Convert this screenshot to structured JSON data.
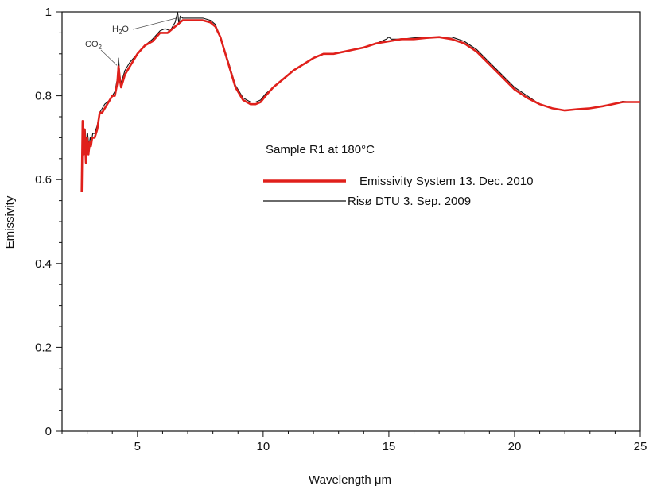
{
  "chart_data": {
    "type": "line",
    "title": "",
    "xlabel": "Wavelength  μm",
    "ylabel": "Emissivity",
    "xlim": [
      2,
      25
    ],
    "ylim": [
      0,
      1
    ],
    "x_ticks": [
      5,
      10,
      15,
      20,
      25
    ],
    "x_tick_labels": [
      "5",
      "10",
      "15",
      "20",
      "25"
    ],
    "x_minor_step": 1,
    "y_ticks": [
      0,
      0.2,
      0.4,
      0.6,
      0.8,
      1
    ],
    "y_tick_labels": [
      "0",
      "0.2",
      "0.4",
      "0.6",
      "0.8",
      "1"
    ],
    "y_minor_step": 0.05,
    "grid": false,
    "legend_position": "upper-middle-right",
    "legend_title": "Sample R1 at 180°C",
    "annotations": [
      {
        "text": "CO",
        "subscript": "2",
        "x": 4.25,
        "y": 0.88
      },
      {
        "text": "H",
        "subscript": "2",
        "suffix": "O",
        "x": 6.6,
        "y": 1.0
      }
    ],
    "series": [
      {
        "name": "Emissivity System 13. Dec. 2010",
        "color": "#e0201b",
        "x": [
          2.78,
          2.82,
          2.86,
          2.9,
          2.95,
          3.0,
          3.05,
          3.1,
          3.15,
          3.2,
          3.3,
          3.4,
          3.5,
          3.6,
          3.7,
          3.8,
          3.9,
          4.0,
          4.1,
          4.2,
          4.25,
          4.3,
          4.35,
          4.4,
          4.5,
          4.7,
          5.0,
          5.3,
          5.6,
          5.9,
          6.2,
          6.4,
          6.6,
          6.8,
          7.0,
          7.3,
          7.6,
          7.9,
          8.1,
          8.3,
          8.6,
          8.9,
          9.2,
          9.5,
          9.7,
          9.9,
          10.1,
          10.4,
          10.8,
          11.2,
          11.6,
          12.0,
          12.4,
          12.8,
          13.2,
          13.6,
          14.0,
          14.5,
          15.0,
          15.5,
          16.0,
          16.5,
          17.0,
          17.5,
          18.0,
          18.5,
          19.0,
          19.5,
          20.0,
          20.5,
          21.0,
          21.5,
          22.0,
          22.5,
          23.0,
          23.5,
          23.9,
          24.3,
          24.6,
          25.0
        ],
        "values": [
          0.57,
          0.74,
          0.66,
          0.72,
          0.64,
          0.7,
          0.66,
          0.69,
          0.68,
          0.7,
          0.7,
          0.72,
          0.76,
          0.76,
          0.77,
          0.78,
          0.79,
          0.8,
          0.8,
          0.83,
          0.87,
          0.84,
          0.82,
          0.83,
          0.85,
          0.87,
          0.9,
          0.92,
          0.93,
          0.95,
          0.95,
          0.96,
          0.97,
          0.98,
          0.98,
          0.98,
          0.98,
          0.975,
          0.965,
          0.94,
          0.88,
          0.82,
          0.79,
          0.78,
          0.78,
          0.785,
          0.8,
          0.82,
          0.84,
          0.86,
          0.875,
          0.89,
          0.9,
          0.9,
          0.905,
          0.91,
          0.915,
          0.925,
          0.93,
          0.935,
          0.935,
          0.938,
          0.94,
          0.935,
          0.925,
          0.905,
          0.875,
          0.845,
          0.815,
          0.795,
          0.78,
          0.77,
          0.765,
          0.768,
          0.77,
          0.775,
          0.78,
          0.785,
          0.785,
          0.785
        ]
      },
      {
        "name": "Risø DTU 3. Sep. 2009",
        "color": "#111111",
        "x": [
          2.8,
          2.84,
          2.88,
          2.92,
          2.97,
          3.02,
          3.07,
          3.12,
          3.17,
          3.22,
          3.3,
          3.4,
          3.5,
          3.6,
          3.7,
          3.8,
          3.9,
          4.0,
          4.1,
          4.2,
          4.25,
          4.3,
          4.35,
          4.4,
          4.5,
          4.7,
          5.0,
          5.3,
          5.6,
          5.9,
          6.1,
          6.3,
          6.5,
          6.6,
          6.65,
          6.7,
          6.8,
          7.0,
          7.3,
          7.6,
          7.9,
          8.1,
          8.3,
          8.6,
          8.9,
          9.2,
          9.5,
          9.7,
          9.9,
          10.1,
          10.4,
          10.8,
          11.2,
          11.6,
          12.0,
          12.4,
          12.8,
          13.2,
          13.6,
          14.0,
          14.5,
          14.9,
          15.0,
          15.1,
          15.5,
          16.0,
          16.5,
          17.0,
          17.5,
          18.0,
          18.5,
          19.0,
          19.5,
          20.0,
          20.5,
          21.0,
          21.5,
          22.0,
          22.5,
          23.0,
          23.5,
          23.9,
          24.3,
          24.6,
          25.0
        ],
        "values": [
          0.66,
          0.73,
          0.67,
          0.72,
          0.68,
          0.71,
          0.68,
          0.7,
          0.69,
          0.71,
          0.71,
          0.73,
          0.76,
          0.77,
          0.78,
          0.785,
          0.79,
          0.8,
          0.81,
          0.84,
          0.89,
          0.85,
          0.83,
          0.84,
          0.86,
          0.88,
          0.9,
          0.92,
          0.935,
          0.955,
          0.96,
          0.955,
          0.975,
          1.0,
          0.97,
          0.99,
          0.985,
          0.985,
          0.985,
          0.985,
          0.98,
          0.97,
          0.94,
          0.885,
          0.825,
          0.795,
          0.785,
          0.785,
          0.79,
          0.805,
          0.82,
          0.84,
          0.86,
          0.875,
          0.89,
          0.9,
          0.9,
          0.905,
          0.91,
          0.915,
          0.925,
          0.935,
          0.94,
          0.935,
          0.935,
          0.938,
          0.94,
          0.94,
          0.94,
          0.93,
          0.91,
          0.88,
          0.85,
          0.82,
          0.8,
          0.78,
          0.77,
          0.765,
          0.768,
          0.77,
          0.775,
          0.78,
          0.787,
          0.785,
          0.785
        ]
      }
    ]
  }
}
